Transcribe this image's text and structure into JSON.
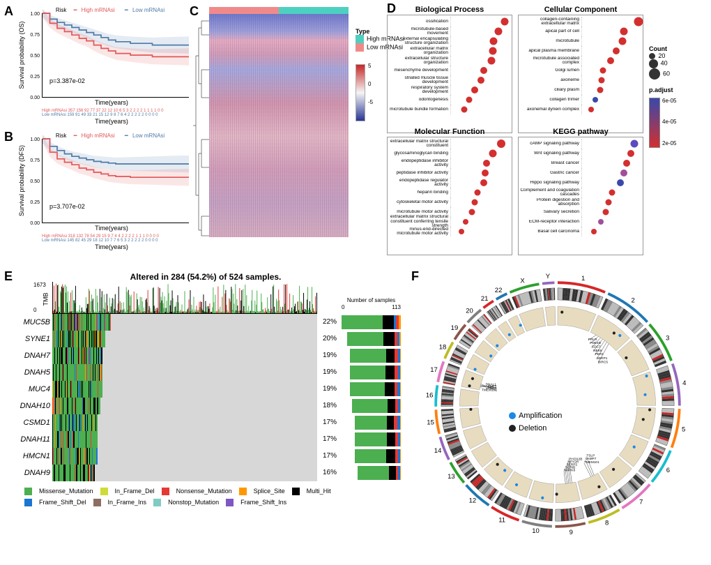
{
  "colors": {
    "high": "#e15759",
    "low": "#4e79a7",
    "heat_high_type": "#4dd0c0",
    "heat_low_type": "#f08a8a",
    "mut_missense": "#4caf50",
    "mut_iframedel": "#cddc39",
    "mut_nonsense": "#e53935",
    "mut_splice": "#ff9800",
    "mut_multihit": "#000000",
    "mut_fsdel": "#1976d2",
    "mut_iframeins": "#8d6e63",
    "mut_nonstop": "#80cbc4",
    "mut_fsins": "#7e57c2",
    "amp": "#1e88e5",
    "del": "#212121"
  },
  "panelA": {
    "ylab": "Survival probability (OS)",
    "xlab": "Time(years)",
    "pval": "p=3.387e-02",
    "legend_risk": "Risk",
    "legend_high": "High mRNAsi",
    "legend_low": "Low mRNAsi",
    "xmax": 20,
    "curves": {
      "high": [
        [
          0,
          1.0
        ],
        [
          1,
          0.88
        ],
        [
          2,
          0.82
        ],
        [
          3,
          0.78
        ],
        [
          4,
          0.74
        ],
        [
          5,
          0.7
        ],
        [
          6,
          0.67
        ],
        [
          7,
          0.62
        ],
        [
          8,
          0.58
        ],
        [
          9,
          0.55
        ],
        [
          10,
          0.52
        ],
        [
          12,
          0.5
        ],
        [
          15,
          0.48
        ],
        [
          20,
          0.48
        ]
      ],
      "low": [
        [
          0,
          1.0
        ],
        [
          1,
          0.93
        ],
        [
          2,
          0.89
        ],
        [
          3,
          0.86
        ],
        [
          4,
          0.83
        ],
        [
          5,
          0.8
        ],
        [
          6,
          0.77
        ],
        [
          7,
          0.74
        ],
        [
          8,
          0.71
        ],
        [
          9,
          0.68
        ],
        [
          10,
          0.66
        ],
        [
          12,
          0.64
        ],
        [
          15,
          0.62
        ],
        [
          20,
          0.62
        ]
      ]
    },
    "risk_table": {
      "high": "357 156 92 77 37 22 12 10 6 5 3 2 2 2 2 1 1 1 1 0 0",
      "low": "159 91 49 33 21 15 12 9 8 7 6 4 2 2 2 2 2 0 0 0 0"
    }
  },
  "panelB": {
    "ylab": "Survival probability (DFS)",
    "xlab": "Time(years)",
    "pval": "p=3.707e-02",
    "legend_risk": "Risk",
    "legend_high": "High mRNAsi",
    "legend_low": "Low mRNAsi",
    "xmax": 20,
    "curves": {
      "high": [
        [
          0,
          1.0
        ],
        [
          1,
          0.84
        ],
        [
          2,
          0.76
        ],
        [
          3,
          0.72
        ],
        [
          4,
          0.69
        ],
        [
          5,
          0.65
        ],
        [
          6,
          0.63
        ],
        [
          7,
          0.6
        ],
        [
          8,
          0.58
        ],
        [
          9,
          0.56
        ],
        [
          10,
          0.55
        ],
        [
          12,
          0.54
        ],
        [
          15,
          0.54
        ],
        [
          20,
          0.54
        ]
      ],
      "low": [
        [
          0,
          1.0
        ],
        [
          1,
          0.91
        ],
        [
          2,
          0.86
        ],
        [
          3,
          0.82
        ],
        [
          4,
          0.79
        ],
        [
          5,
          0.77
        ],
        [
          6,
          0.75
        ],
        [
          7,
          0.73
        ],
        [
          8,
          0.72
        ],
        [
          9,
          0.71
        ],
        [
          10,
          0.7
        ],
        [
          12,
          0.7
        ],
        [
          15,
          0.7
        ],
        [
          20,
          0.7
        ]
      ]
    },
    "risk_table": {
      "high": "318 132 78 54 29 15 9 7 4 4 2 2 2 2 1 1 1 0 0 0 0",
      "low": "145 82 45 29 18 12 10 7 7 6 5 3 2 2 2 2 2 0 0 0 0"
    }
  },
  "panelC": {
    "legend_title": "Type",
    "legend_high": "High mRNAsi",
    "legend_low": "Low mRNAsi",
    "scale": {
      "max": 5,
      "min": -5
    }
  },
  "panelD": {
    "subplots": [
      {
        "title": "Biological Process",
        "terms": [
          {
            "label": "ossification",
            "x": 0.9,
            "size": 11,
            "color": "#d32f2f"
          },
          {
            "label": "microtubule-based movement",
            "x": 0.8,
            "size": 11,
            "color": "#d32f2f"
          },
          {
            "label": "external encapsulating structure organization",
            "x": 0.72,
            "size": 11,
            "color": "#d32f2f"
          },
          {
            "label": "extracellular matrix organization",
            "x": 0.7,
            "size": 11,
            "color": "#d32f2f"
          },
          {
            "label": "extracellular structure organization",
            "x": 0.68,
            "size": 11,
            "color": "#d32f2f"
          },
          {
            "label": "mesenchyme development",
            "x": 0.55,
            "size": 10,
            "color": "#d32f2f"
          },
          {
            "label": "striated muscle tissue development",
            "x": 0.5,
            "size": 10,
            "color": "#d32f2f"
          },
          {
            "label": "respiratory system development",
            "x": 0.4,
            "size": 10,
            "color": "#d32f2f"
          },
          {
            "label": "odontogenesis",
            "x": 0.3,
            "size": 9,
            "color": "#d32f2f"
          },
          {
            "label": "microtubule bundle formation",
            "x": 0.22,
            "size": 9,
            "color": "#d32f2f"
          }
        ]
      },
      {
        "title": "Cellular Component",
        "terms": [
          {
            "label": "collagen-containing extracellular matrix",
            "x": 0.95,
            "size": 13,
            "color": "#d32f2f"
          },
          {
            "label": "apical part of cell",
            "x": 0.7,
            "size": 11,
            "color": "#d32f2f"
          },
          {
            "label": "microtubule",
            "x": 0.68,
            "size": 11,
            "color": "#d32f2f"
          },
          {
            "label": "apical plasma membrane",
            "x": 0.58,
            "size": 10,
            "color": "#d32f2f"
          },
          {
            "label": "microtubule associated complex",
            "x": 0.48,
            "size": 10,
            "color": "#d32f2f"
          },
          {
            "label": "Golgi lumen",
            "x": 0.35,
            "size": 9,
            "color": "#d32f2f"
          },
          {
            "label": "axoneme",
            "x": 0.33,
            "size": 9,
            "color": "#d32f2f"
          },
          {
            "label": "ciliary plasm",
            "x": 0.3,
            "size": 9,
            "color": "#d32f2f"
          },
          {
            "label": "collagen trimer",
            "x": 0.22,
            "size": 8,
            "color": "#3949ab"
          },
          {
            "label": "axonemal dynein complex",
            "x": 0.15,
            "size": 8,
            "color": "#d32f2f"
          }
        ]
      },
      {
        "title": "Molecular Function",
        "terms": [
          {
            "label": "extracellular matrix structural constituent",
            "x": 0.85,
            "size": 12,
            "color": "#d32f2f"
          },
          {
            "label": "glycosaminoglycan binding",
            "x": 0.7,
            "size": 11,
            "color": "#d32f2f"
          },
          {
            "label": "endopeptidase inhibitor activity",
            "x": 0.6,
            "size": 10,
            "color": "#d32f2f"
          },
          {
            "label": "peptidase inhibitor activity",
            "x": 0.58,
            "size": 10,
            "color": "#d32f2f"
          },
          {
            "label": "endopeptidase regulator activity",
            "x": 0.55,
            "size": 10,
            "color": "#d32f2f"
          },
          {
            "label": "heparin binding",
            "x": 0.45,
            "size": 9,
            "color": "#d32f2f"
          },
          {
            "label": "cytoskeletal motor activity",
            "x": 0.4,
            "size": 9,
            "color": "#d32f2f"
          },
          {
            "label": "microtubule motor activity",
            "x": 0.35,
            "size": 9,
            "color": "#d32f2f"
          },
          {
            "label": "extracellular matrix structural constituent conferring tensile strength",
            "x": 0.25,
            "size": 8,
            "color": "#d32f2f"
          },
          {
            "label": "minus-end-directed microtubule motor activity",
            "x": 0.18,
            "size": 8,
            "color": "#d32f2f"
          }
        ]
      },
      {
        "title": "KEGG pathway",
        "terms": [
          {
            "label": "cAMP signaling pathway",
            "x": 0.88,
            "size": 11,
            "color": "#5c4bc0"
          },
          {
            "label": "Wnt signaling pathway",
            "x": 0.82,
            "size": 10,
            "color": "#d32f2f"
          },
          {
            "label": "Breast cancer",
            "x": 0.75,
            "size": 10,
            "color": "#d32f2f"
          },
          {
            "label": "Gastric cancer",
            "x": 0.7,
            "size": 10,
            "color": "#a0509a"
          },
          {
            "label": "Hippo signaling pathway",
            "x": 0.65,
            "size": 10,
            "color": "#3949ab"
          },
          {
            "label": "Complement and coagulation cascades",
            "x": 0.5,
            "size": 9,
            "color": "#d32f2f"
          },
          {
            "label": "Protein digestion and absorption",
            "x": 0.45,
            "size": 9,
            "color": "#d32f2f"
          },
          {
            "label": "Salivary secretion",
            "x": 0.4,
            "size": 9,
            "color": "#d32f2f"
          },
          {
            "label": "ECM-receptor interaction",
            "x": 0.32,
            "size": 8,
            "color": "#a0509a"
          },
          {
            "label": "Basal cell carcinoma",
            "x": 0.2,
            "size": 8,
            "color": "#d32f2f"
          }
        ]
      }
    ],
    "legend": {
      "count_title": "Count",
      "counts": [
        20,
        40,
        60
      ],
      "padj_title": "p.adjust",
      "padj_top": "6e-05",
      "padj_mid": "4e-05",
      "padj_bot": "2e-05"
    }
  },
  "panelE": {
    "title": "Altered in 284 (54.2%) of 524 samples.",
    "tmb_max": 1673,
    "tmb_label": "TMB",
    "nsamp_max": 113,
    "nsamp_zero": 0,
    "nsamp_title": "Number of samples",
    "genes": [
      {
        "gene": "MUC5B",
        "pct": "22%",
        "stack": {
          "missense": 0.7,
          "multihit": 0.18,
          "fsdel": 0.04,
          "nonsense": 0.04,
          "splice": 0.04
        }
      },
      {
        "gene": "SYNE1",
        "pct": "20%",
        "stack": {
          "missense": 0.68,
          "multihit": 0.2,
          "nonsense": 0.06,
          "fsdel": 0.04,
          "splice": 0.02
        }
      },
      {
        "gene": "DNAH7",
        "pct": "19%",
        "stack": {
          "missense": 0.72,
          "multihit": 0.16,
          "nonsense": 0.06,
          "fsdel": 0.04,
          "splice": 0.02
        }
      },
      {
        "gene": "DNAH5",
        "pct": "19%",
        "stack": {
          "missense": 0.7,
          "multihit": 0.18,
          "nonsense": 0.06,
          "fsdel": 0.04,
          "splice": 0.02
        }
      },
      {
        "gene": "MUC4",
        "pct": "19%",
        "stack": {
          "missense": 0.68,
          "multihit": 0.2,
          "nonsense": 0.05,
          "fsdel": 0.05,
          "splice": 0.02
        }
      },
      {
        "gene": "DNAH10",
        "pct": "18%",
        "stack": {
          "missense": 0.72,
          "multihit": 0.16,
          "nonsense": 0.06,
          "fsdel": 0.04,
          "splice": 0.02
        }
      },
      {
        "gene": "CSMD1",
        "pct": "17%",
        "stack": {
          "missense": 0.7,
          "multihit": 0.15,
          "nonsense": 0.08,
          "fsdel": 0.05,
          "splice": 0.02
        }
      },
      {
        "gene": "DNAH11",
        "pct": "17%",
        "stack": {
          "missense": 0.7,
          "multihit": 0.18,
          "nonsense": 0.06,
          "fsdel": 0.04,
          "splice": 0.02
        }
      },
      {
        "gene": "HMCN1",
        "pct": "17%",
        "stack": {
          "missense": 0.68,
          "multihit": 0.2,
          "nonsense": 0.06,
          "fsdel": 0.04,
          "splice": 0.02
        }
      },
      {
        "gene": "DNAH9",
        "pct": "16%",
        "stack": {
          "missense": 0.72,
          "multihit": 0.16,
          "nonsense": 0.06,
          "fsdel": 0.04,
          "splice": 0.02
        }
      }
    ],
    "legend": [
      {
        "label": "Missense_Mutation",
        "key": "mut_missense"
      },
      {
        "label": "In_Frame_Del",
        "key": "mut_iframedel"
      },
      {
        "label": "Nonsense_Mutation",
        "key": "mut_nonsense"
      },
      {
        "label": "Splice_Site",
        "key": "mut_splice"
      },
      {
        "label": "Multi_Hit",
        "key": "mut_multihit"
      },
      {
        "label": "Frame_Shift_Del",
        "key": "mut_fsdel"
      },
      {
        "label": "In_Frame_Ins",
        "key": "mut_iframeins"
      },
      {
        "label": "Nonstop_Mutation",
        "key": "mut_nonstop"
      },
      {
        "label": "Frame_Shift_Ins",
        "key": "mut_fsins"
      }
    ]
  },
  "panelF": {
    "chromosomes": [
      "1",
      "2",
      "3",
      "4",
      "5",
      "6",
      "7",
      "8",
      "9",
      "10",
      "11",
      "12",
      "13",
      "14",
      "15",
      "16",
      "17",
      "18",
      "19",
      "20",
      "21",
      "22",
      "X",
      "Y"
    ],
    "arc_colors": [
      "#d62728",
      "#1f77b4",
      "#2ca02c",
      "#9467bd",
      "#ff7f0e",
      "#17becf",
      "#e377c2",
      "#bcbd22",
      "#8c564b",
      "#7f7f7f",
      "#d62728",
      "#1f77b4",
      "#2ca02c",
      "#9467bd",
      "#ff7f0e",
      "#17becf",
      "#e377c2",
      "#bcbd22",
      "#8c564b",
      "#7f7f7f",
      "#d62728",
      "#1f77b4",
      "#2ca02c",
      "#9467bd"
    ],
    "legend_amp": "Amplification",
    "legend_del": "Deletion",
    "gene_labels": {
      "2": [
        "PRLR",
        "PDE4D",
        "CDC7",
        "NEK6",
        "PER1",
        "SERP1",
        "BIRC5"
      ],
      "8": [
        "TSLP",
        "VAMP7",
        "TMEM101"
      ],
      "9": [
        "PHOX2B",
        "NPY2R",
        "SERP2",
        "SCRIB",
        "MAPK8"
      ],
      "17": [
        "DNAL1",
        "EML2",
        "VAMP4",
        "TMEM101"
      ]
    }
  }
}
